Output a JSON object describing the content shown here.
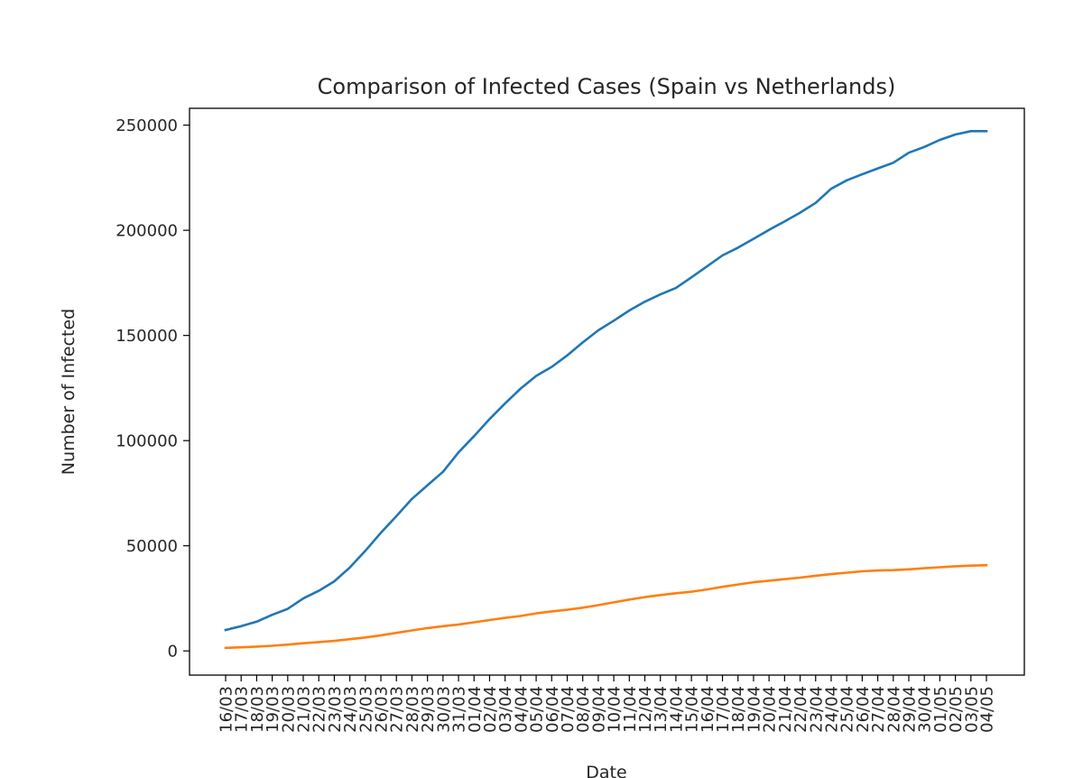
{
  "chart_data": {
    "type": "line",
    "title": "Comparison of Infected Cases (Spain vs Netherlands)",
    "xlabel": "Date",
    "ylabel": "Number of Infected",
    "ylim": [
      -11500,
      258000
    ],
    "yticks": [
      0,
      50000,
      100000,
      150000,
      200000,
      250000
    ],
    "grid": false,
    "categories": [
      "16/03",
      "17/03",
      "18/03",
      "19/03",
      "20/03",
      "21/03",
      "22/03",
      "23/03",
      "24/03",
      "25/03",
      "26/03",
      "27/03",
      "28/03",
      "29/03",
      "30/03",
      "31/03",
      "01/04",
      "02/04",
      "03/04",
      "04/04",
      "05/04",
      "06/04",
      "07/04",
      "08/04",
      "09/04",
      "10/04",
      "11/04",
      "12/04",
      "13/04",
      "14/04",
      "15/04",
      "16/04",
      "17/04",
      "18/04",
      "19/04",
      "20/04",
      "21/04",
      "22/04",
      "23/04",
      "24/04",
      "25/04",
      "26/04",
      "27/04",
      "28/04",
      "29/04",
      "30/04",
      "01/05",
      "02/05",
      "03/05",
      "04/05"
    ],
    "series": [
      {
        "name": "Spain",
        "color": "#1f77b4",
        "values": [
          9942,
          11748,
          13910,
          17147,
          19980,
          24926,
          28572,
          33089,
          39673,
          47610,
          56188,
          64059,
          72248,
          78797,
          85195,
          94417,
          102136,
          110238,
          117710,
          124736,
          130759,
          135032,
          140510,
          146690,
          152446,
          157022,
          161852,
          166019,
          169496,
          172541,
          177633,
          182816,
          188068,
          191726,
          195944,
          200210,
          204178,
          208389,
          213024,
          219764,
          223759,
          226629,
          229422,
          232128,
          236899,
          239639,
          242988,
          245567,
          247122,
          247122
        ]
      },
      {
        "name": "Netherlands",
        "color": "#ff7f0e",
        "values": [
          1413,
          1705,
          2051,
          2460,
          2994,
          3631,
          4204,
          4749,
          5560,
          6412,
          7431,
          8603,
          9762,
          10866,
          11750,
          12595,
          13614,
          14697,
          15723,
          16627,
          17851,
          18803,
          19580,
          20549,
          21762,
          23097,
          24413,
          25587,
          26551,
          27419,
          28153,
          29214,
          30449,
          31589,
          32655,
          33405,
          34134,
          34842,
          35729,
          36535,
          37190,
          37845,
          38245,
          38416,
          38802,
          39316,
          39791,
          40236,
          40571,
          40770
        ]
      }
    ]
  }
}
